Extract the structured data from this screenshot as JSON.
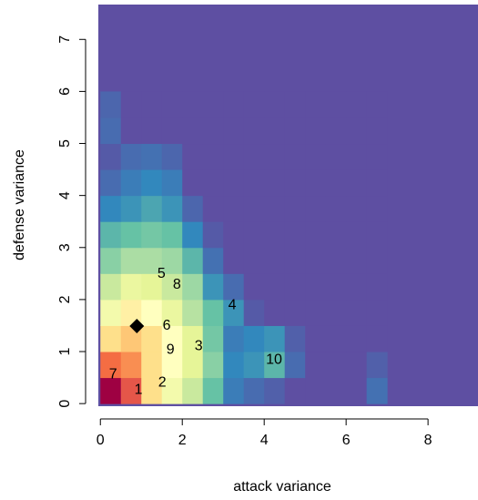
{
  "chart_data": {
    "type": "heatmap",
    "x_label": "attack variance",
    "y_label": "defense variance",
    "xlim": [
      -0.05,
      9.22
    ],
    "ylim": [
      -0.05,
      7.67
    ],
    "xticks": [
      0,
      2,
      4,
      6,
      8
    ],
    "yticks": [
      0,
      1,
      2,
      3,
      4,
      5,
      6,
      7
    ],
    "xbins": [
      0,
      0.5,
      1,
      1.5,
      2,
      2.5,
      3,
      3.5,
      4,
      4.5,
      5,
      5.5,
      6,
      6.5,
      7
    ],
    "ybins": [
      0,
      0.5,
      1,
      1.5,
      2,
      2.5,
      3,
      3.5,
      4,
      4.5,
      5,
      5.5,
      6
    ],
    "z": [
      [
        1.0,
        0.85,
        0.6,
        0.45,
        0.35,
        0.2,
        0.08,
        0.05,
        0.03,
        0,
        0,
        0,
        0,
        0.06
      ],
      [
        0.8,
        0.75,
        0.6,
        0.5,
        0.4,
        0.25,
        0.1,
        0.12,
        0.18,
        0.05,
        0,
        0,
        0,
        0.03
      ],
      [
        0.6,
        0.65,
        0.6,
        0.5,
        0.4,
        0.22,
        0.08,
        0.1,
        0.12,
        0.03,
        0,
        0,
        0,
        0
      ],
      [
        0.45,
        0.55,
        0.5,
        0.42,
        0.32,
        0.2,
        0.12,
        0.02,
        0,
        0,
        0,
        0,
        0,
        0
      ],
      [
        0.35,
        0.42,
        0.4,
        0.35,
        0.28,
        0.12,
        0.05,
        0,
        0,
        0,
        0,
        0,
        0,
        0
      ],
      [
        0.25,
        0.3,
        0.3,
        0.28,
        0.18,
        0.06,
        0,
        0,
        0,
        0,
        0,
        0,
        0,
        0
      ],
      [
        0.18,
        0.2,
        0.22,
        0.2,
        0.1,
        0.02,
        0,
        0,
        0,
        0,
        0,
        0,
        0,
        0
      ],
      [
        0.1,
        0.12,
        0.15,
        0.12,
        0.04,
        0,
        0,
        0,
        0,
        0,
        0,
        0,
        0,
        0
      ],
      [
        0.05,
        0.08,
        0.1,
        0.08,
        0,
        0,
        0,
        0,
        0,
        0,
        0,
        0,
        0,
        0
      ],
      [
        0.02,
        0.05,
        0.06,
        0.04,
        0,
        0,
        0,
        0,
        0,
        0,
        0,
        0,
        0,
        0
      ],
      [
        0.05,
        0,
        0,
        0,
        0,
        0,
        0,
        0,
        0,
        0,
        0,
        0,
        0,
        0
      ],
      [
        0.04,
        0,
        0,
        0,
        0,
        0,
        0,
        0,
        0,
        0,
        0,
        0,
        0,
        0
      ]
    ],
    "colors": [
      "#5E4FA2",
      "#3288BD",
      "#66C2A5",
      "#ABDDA4",
      "#E6F598",
      "#FFFFBF",
      "#FEE08B",
      "#FDAE61",
      "#F46D43",
      "#D53E4F",
      "#9E0142"
    ],
    "points": [
      {
        "label": "1",
        "x": 0.93,
        "y": 0.26
      },
      {
        "label": "2",
        "x": 1.51,
        "y": 0.4
      },
      {
        "label": "3",
        "x": 2.4,
        "y": 1.1
      },
      {
        "label": "4",
        "x": 3.22,
        "y": 1.89
      },
      {
        "label": "5",
        "x": 1.49,
        "y": 2.49
      },
      {
        "label": "6",
        "x": 1.62,
        "y": 1.49
      },
      {
        "label": "7",
        "x": 0.31,
        "y": 0.56
      },
      {
        "label": "8",
        "x": 1.87,
        "y": 2.28
      },
      {
        "label": "9",
        "x": 1.71,
        "y": 1.03
      },
      {
        "label": "10",
        "x": 4.24,
        "y": 0.84
      }
    ],
    "marker": {
      "x": 0.89,
      "y": 1.49,
      "color": "#000000"
    }
  }
}
